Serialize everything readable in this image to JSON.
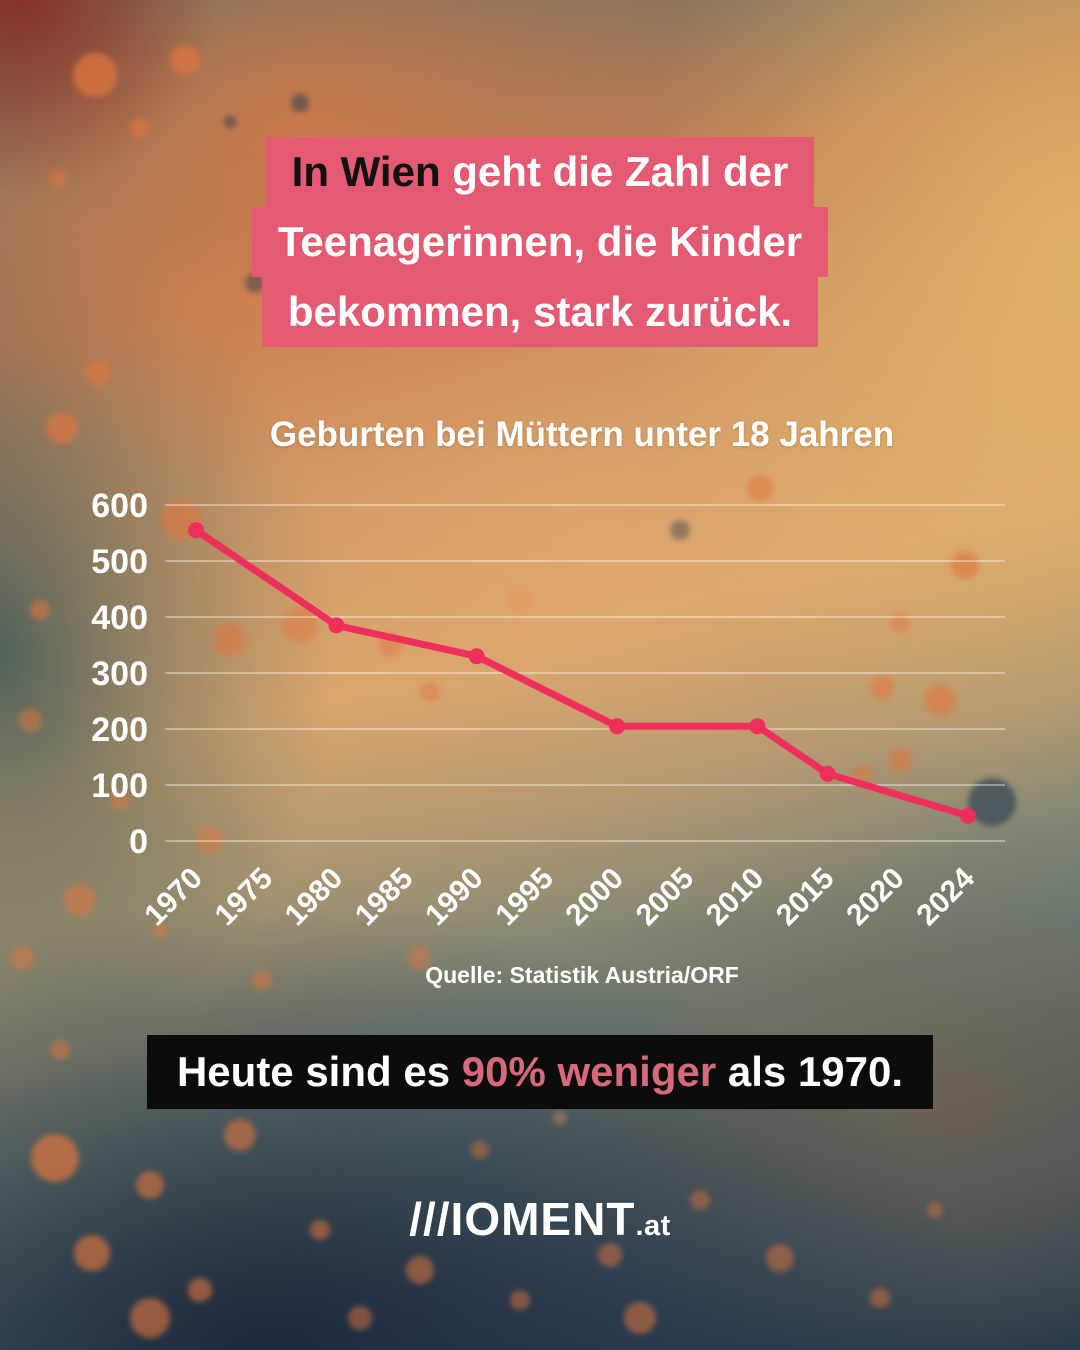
{
  "brand": {
    "logo_main": "///IOMENT",
    "logo_suffix": ".at"
  },
  "colors": {
    "highlight_pink": "#e45a72",
    "line_pink": "#ee2f5b",
    "headline_accent_text": "#111111",
    "banner_bg": "#0c0c0c",
    "banner_accent_pink": "#d6697a",
    "text_white": "#ffffff"
  },
  "headline": {
    "line1_accent": "In Wien",
    "line1_rest": " geht die Zahl der",
    "line2": "Teenagerinnen, die Kinder",
    "line3": "bekommen, stark zurück."
  },
  "chart_data": {
    "type": "line",
    "title": "Geburten bei Müttern unter 18 Jahren",
    "source": "Quelle: Statistik Austria/ORF",
    "xlabel": "",
    "ylabel": "",
    "x_tick_labels": [
      "1970",
      "1975",
      "1980",
      "1985",
      "1990",
      "1995",
      "2000",
      "2005",
      "2010",
      "2015",
      "2020",
      "2024"
    ],
    "y_ticks": [
      0,
      100,
      200,
      300,
      400,
      500,
      600
    ],
    "ylim": [
      0,
      600
    ],
    "grid": true,
    "legend_position": "none",
    "series": [
      {
        "name": "Geburten bei Müttern unter 18 Jahren",
        "points": [
          {
            "year": "1970",
            "value": 555
          },
          {
            "year": "1980",
            "value": 385
          },
          {
            "year": "1990",
            "value": 330
          },
          {
            "year": "2000",
            "value": 205
          },
          {
            "year": "2010",
            "value": 205
          },
          {
            "year": "2015",
            "value": 120
          },
          {
            "year": "2024",
            "value": 45
          }
        ]
      }
    ]
  },
  "banner": {
    "prefix": "Heute sind es ",
    "accent": "90% weniger",
    "suffix": " als 1970."
  }
}
